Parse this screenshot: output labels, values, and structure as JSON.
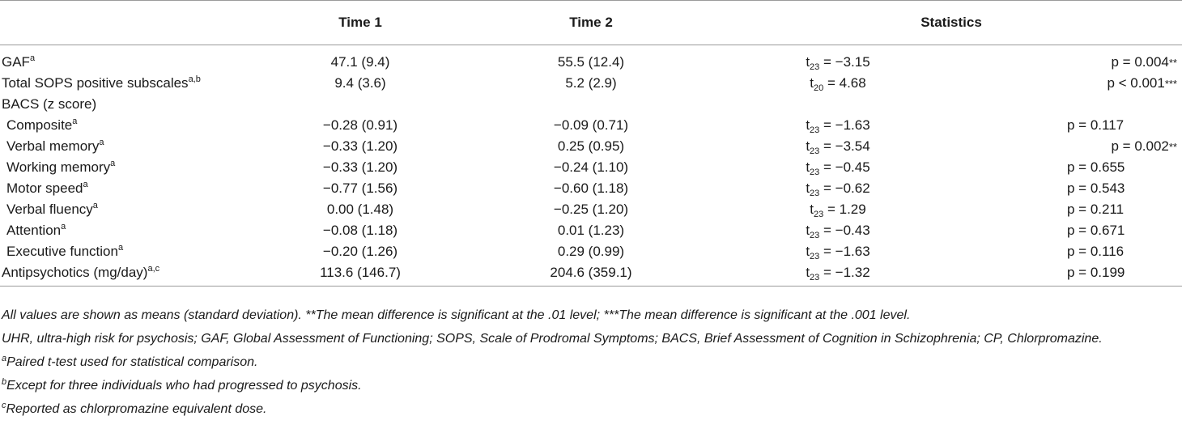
{
  "header": {
    "col0": "",
    "time1": "Time 1",
    "time2": "Time 2",
    "statistics": "Statistics"
  },
  "rows": [
    {
      "label": "GAF",
      "sup": "a",
      "t1": "47.1 (9.4)",
      "t2": "55.5 (12.4)",
      "t_sub": "23",
      "t_val": " = −3.15",
      "p": "p = 0.004",
      "stars": "**"
    },
    {
      "label": "Total SOPS positive subscales",
      "sup": "a,b",
      "t1": "9.4 (3.6)",
      "t2": "5.2 (2.9)",
      "t_sub": "20",
      "t_val": " = 4.68",
      "p": "p < 0.001",
      "stars": "***"
    },
    {
      "label": "BACS (z score)",
      "sup": "",
      "t1": "",
      "t2": "",
      "t_sub": "",
      "t_val": "",
      "p": "",
      "stars": ""
    },
    {
      "label": "Composite",
      "sup": "a",
      "t1": "−0.28 (0.91)",
      "t2": "−0.09 (0.71)",
      "t_sub": "23",
      "t_val": " = −1.63",
      "p": "p = 0.117",
      "stars": ""
    },
    {
      "label": "Verbal memory",
      "sup": "a",
      "t1": "−0.33 (1.20)",
      "t2": "0.25 (0.95)",
      "t_sub": "23",
      "t_val": " = −3.54",
      "p": "p = 0.002",
      "stars": "**"
    },
    {
      "label": "Working memory",
      "sup": "a",
      "t1": "−0.33 (1.20)",
      "t2": "−0.24 (1.10)",
      "t_sub": "23",
      "t_val": " = −0.45",
      "p": "p = 0.655",
      "stars": ""
    },
    {
      "label": "Motor speed",
      "sup": "a",
      "t1": "−0.77 (1.56)",
      "t2": "−0.60 (1.18)",
      "t_sub": "23",
      "t_val": " = −0.62",
      "p": "p = 0.543",
      "stars": ""
    },
    {
      "label": "Verbal fluency",
      "sup": "a",
      "t1": "0.00 (1.48)",
      "t2": "−0.25 (1.20)",
      "t_sub": "23",
      "t_val": " = 1.29",
      "p": "p = 0.211",
      "stars": ""
    },
    {
      "label": "Attention",
      "sup": "a",
      "t1": "−0.08 (1.18)",
      "t2": "0.01 (1.23)",
      "t_sub": "23",
      "t_val": " = −0.43",
      "p": "p = 0.671",
      "stars": ""
    },
    {
      "label": "Executive function",
      "sup": "a",
      "t1": "−0.20 (1.26)",
      "t2": "0.29 (0.99)",
      "t_sub": "23",
      "t_val": " = −1.63",
      "p": "p = 0.116",
      "stars": ""
    },
    {
      "label": "Antipsychotics (mg/day)",
      "sup": "a,c",
      "t1": "113.6 (146.7)",
      "t2": "204.6 (359.1)",
      "t_sub": "23",
      "t_val": " = −1.32",
      "p": "p = 0.199",
      "stars": ""
    }
  ],
  "notes": {
    "line1": "All values are shown as means (standard deviation). **The mean difference is significant at the .01 level; ***The mean difference is significant at the .001 level.",
    "line2": "UHR, ultra-high risk for psychosis; GAF, Global Assessment of Functioning; SOPS, Scale of Prodromal Symptoms; BACS, Brief Assessment of Cognition in Schizophrenia; CP, Chlorpromazine.",
    "fn_a_mark": "a",
    "fn_a": "Paired t-test used for statistical comparison.",
    "fn_b_mark": "b",
    "fn_b": "Except for three individuals who had progressed to psychosis.",
    "fn_c_mark": "c",
    "fn_c": "Reported as chlorpromazine equivalent dose."
  }
}
